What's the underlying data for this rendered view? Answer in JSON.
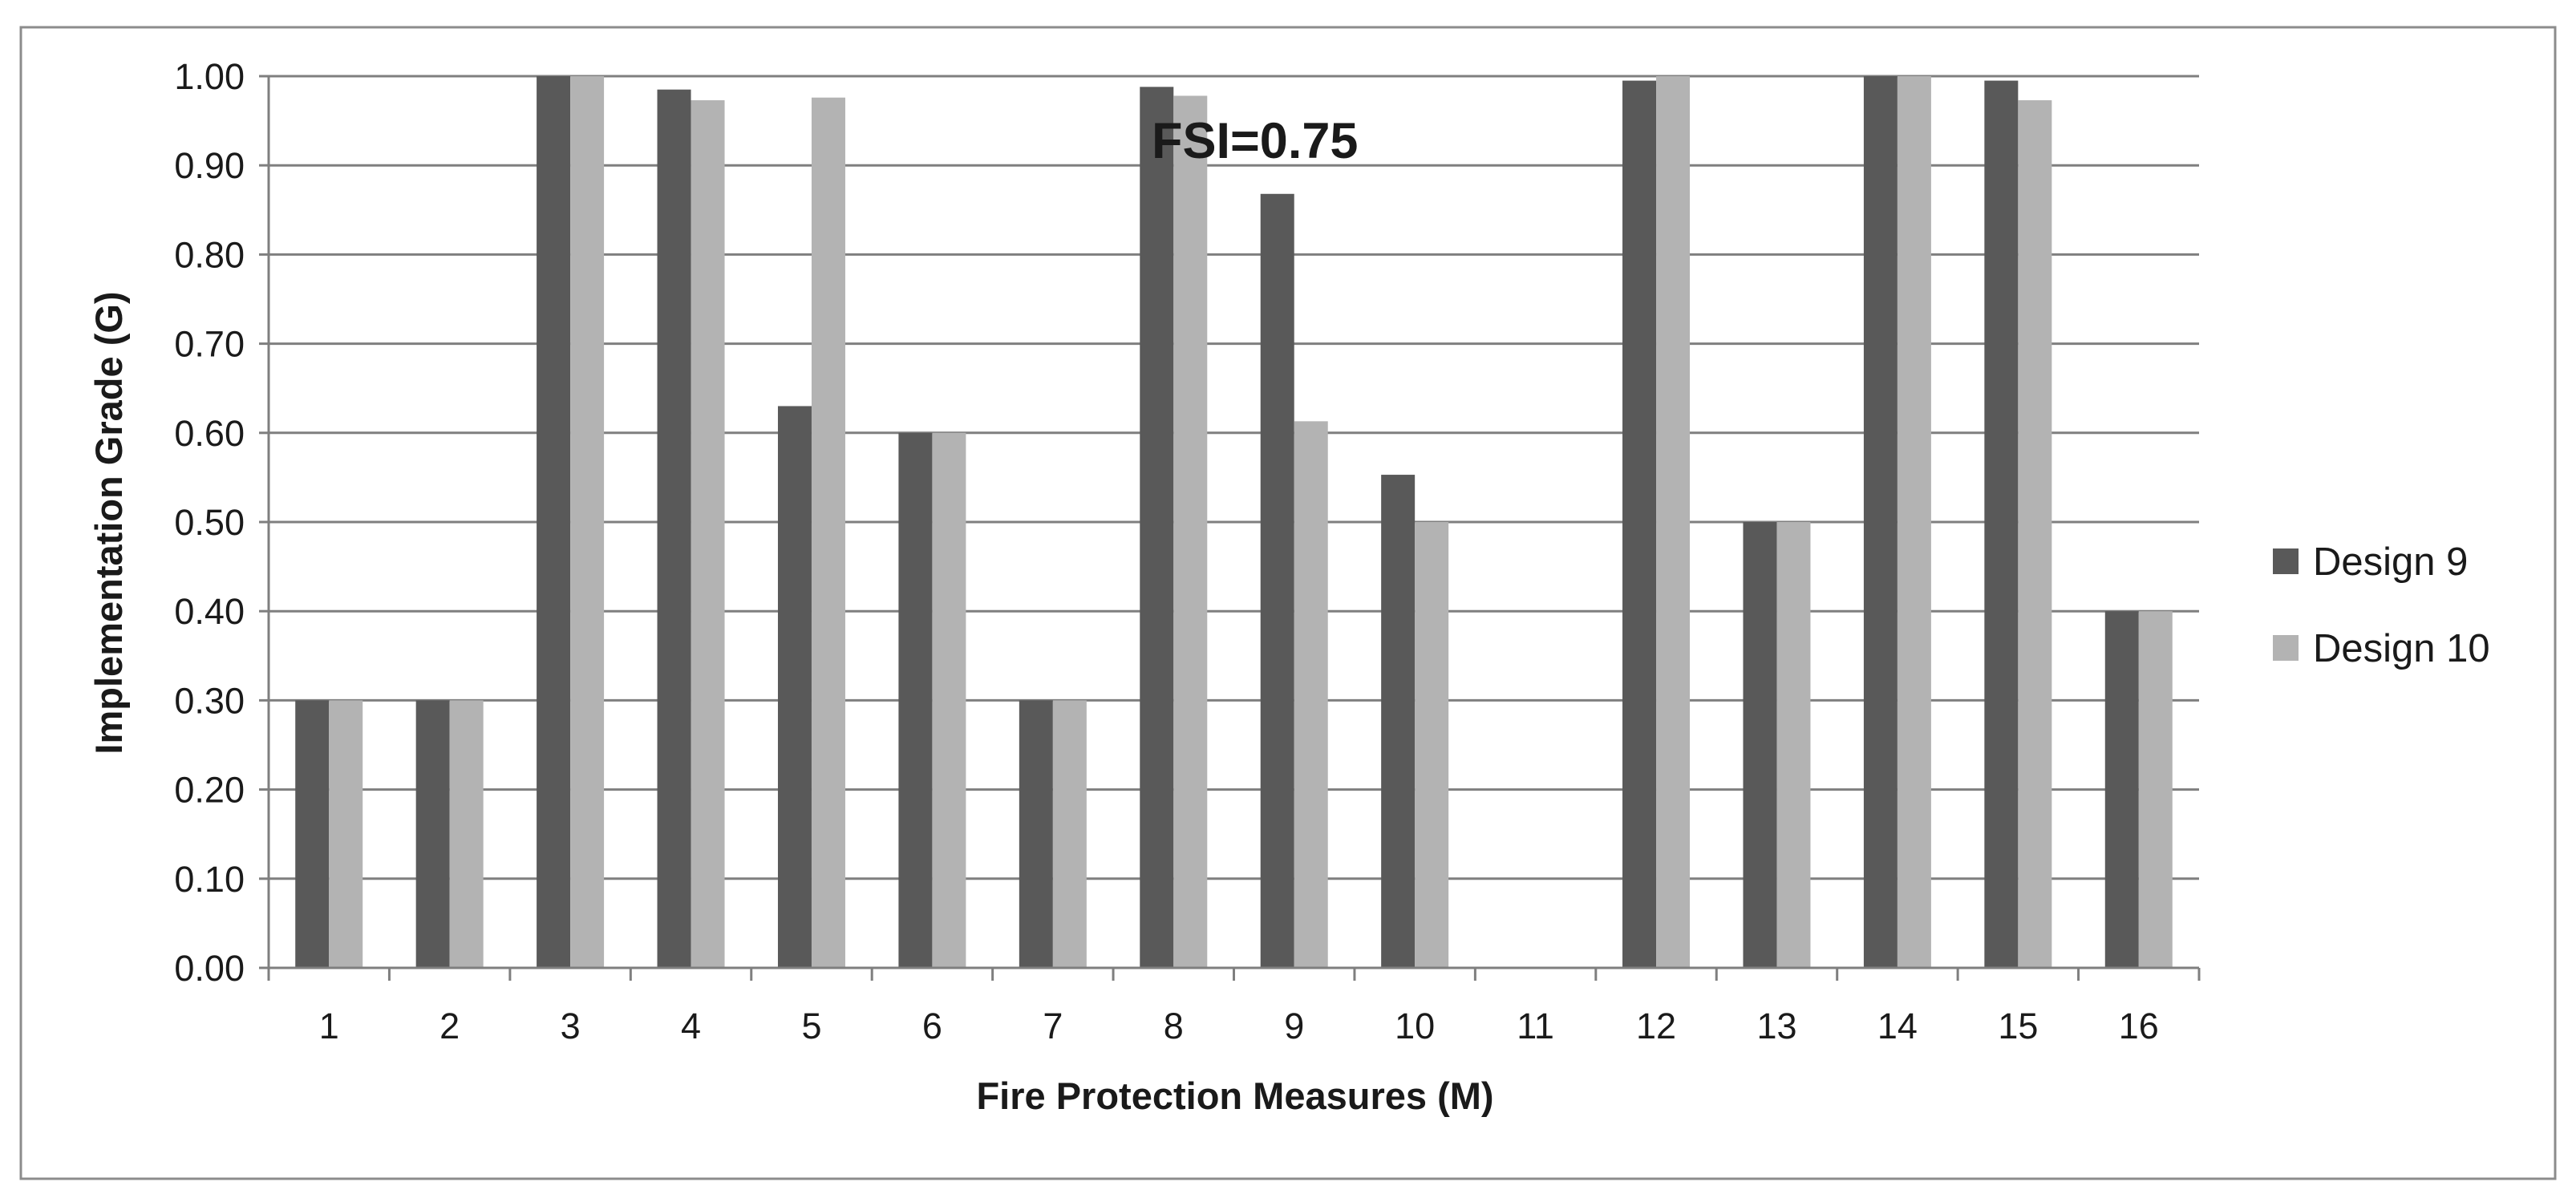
{
  "chart_data": {
    "type": "bar",
    "title": "",
    "xlabel": "Fire Protection Measures (M)",
    "ylabel": "Implementation Grade (G)",
    "annotation": "FSI=0.75",
    "categories": [
      "1",
      "2",
      "3",
      "4",
      "5",
      "6",
      "7",
      "8",
      "9",
      "10",
      "11",
      "12",
      "13",
      "14",
      "15",
      "16"
    ],
    "series": [
      {
        "name": "Design 9",
        "color": "#595959",
        "values": [
          0.3,
          0.3,
          1.0,
          0.985,
          0.63,
          0.6,
          0.3,
          0.988,
          0.868,
          0.553,
          0.0,
          0.995,
          0.5,
          1.0,
          0.995,
          0.4
        ]
      },
      {
        "name": "Design 10",
        "color": "#b3b3b3",
        "values": [
          0.3,
          0.3,
          1.0,
          0.973,
          0.976,
          0.6,
          0.3,
          0.978,
          0.613,
          0.5,
          0.0,
          1.0,
          0.5,
          1.0,
          0.973,
          0.4
        ]
      }
    ],
    "ylim": [
      0,
      1
    ],
    "yticks": [
      "0.00",
      "0.10",
      "0.20",
      "0.30",
      "0.40",
      "0.50",
      "0.60",
      "0.70",
      "0.80",
      "0.90",
      "1.00"
    ],
    "grid": true,
    "legend_position": "right",
    "colors": {
      "gridline": "#7f7f7f",
      "axis": "#7f7f7f",
      "frame": "#7f7f7f"
    }
  }
}
